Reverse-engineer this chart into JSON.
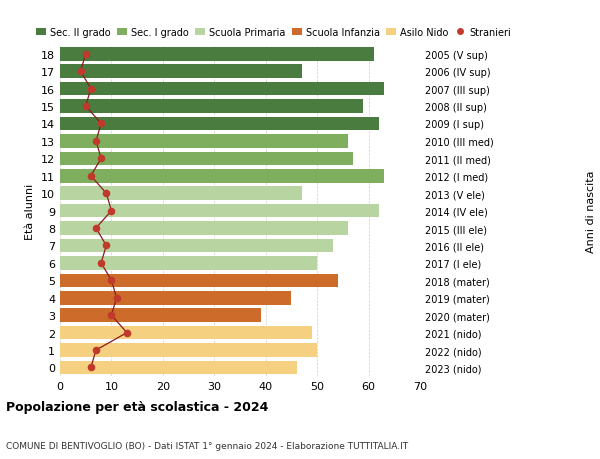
{
  "ages": [
    18,
    17,
    16,
    15,
    14,
    13,
    12,
    11,
    10,
    9,
    8,
    7,
    6,
    5,
    4,
    3,
    2,
    1,
    0
  ],
  "bar_values": [
    61,
    47,
    63,
    59,
    62,
    56,
    57,
    63,
    47,
    62,
    56,
    53,
    50,
    54,
    45,
    39,
    49,
    50,
    46
  ],
  "stranieri": [
    5,
    4,
    6,
    5,
    8,
    7,
    8,
    6,
    9,
    10,
    7,
    9,
    8,
    10,
    11,
    10,
    13,
    7,
    6
  ],
  "right_labels": [
    "2005 (V sup)",
    "2006 (IV sup)",
    "2007 (III sup)",
    "2008 (II sup)",
    "2009 (I sup)",
    "2010 (III med)",
    "2011 (II med)",
    "2012 (I med)",
    "2013 (V ele)",
    "2014 (IV ele)",
    "2015 (III ele)",
    "2016 (II ele)",
    "2017 (I ele)",
    "2018 (mater)",
    "2019 (mater)",
    "2020 (mater)",
    "2021 (nido)",
    "2022 (nido)",
    "2023 (nido)"
  ],
  "bar_colors": [
    "#4a7c3f",
    "#4a7c3f",
    "#4a7c3f",
    "#4a7c3f",
    "#4a7c3f",
    "#7faf5e",
    "#7faf5e",
    "#7faf5e",
    "#b8d4a0",
    "#b8d4a0",
    "#b8d4a0",
    "#b8d4a0",
    "#b8d4a0",
    "#cc6b2a",
    "#cc6b2a",
    "#cc6b2a",
    "#f5d080",
    "#f5d080",
    "#f5d080"
  ],
  "legend_labels": [
    "Sec. II grado",
    "Sec. I grado",
    "Scuola Primaria",
    "Scuola Infanzia",
    "Asilo Nido",
    "Stranieri"
  ],
  "legend_colors": [
    "#4a7c3f",
    "#7faf5e",
    "#b8d4a0",
    "#cc6b2a",
    "#f5d080",
    "#c0392b"
  ],
  "ylabel": "Età alunni",
  "right_ylabel": "Anni di nascita",
  "title": "Popolazione per età scolastica - 2024",
  "subtitle": "COMUNE DI BENTIVOGLIO (BO) - Dati ISTAT 1° gennaio 2024 - Elaborazione TUTTITALIA.IT",
  "xlim": [
    0,
    70
  ],
  "stranieri_color": "#c0392b",
  "stranieri_line_color": "#8b1a1a",
  "bg_color": "#ffffff",
  "grid_color": "#cccccc"
}
